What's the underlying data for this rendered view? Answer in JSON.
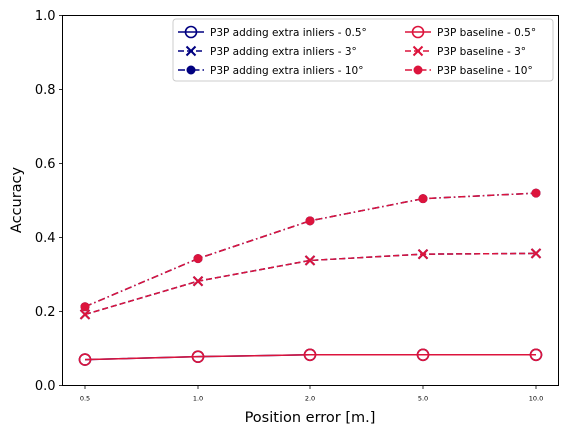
{
  "chart_data": {
    "type": "line",
    "title": "",
    "xlabel": "Position error [m.]",
    "ylabel": "Accuracy",
    "categories": [
      "0.5",
      "1.0",
      "2.0",
      "5.0",
      "10.0"
    ],
    "ylim": [
      0,
      1.0
    ],
    "yticks": [
      "0.0",
      "0.2",
      "0.4",
      "0.6",
      "0.8",
      "1.0"
    ],
    "grid": false,
    "legend_position": "top-right",
    "series": [
      {
        "name": "P3P adding extra inliers - 0.5°",
        "values": [
          0.07,
          0.078,
          0.083,
          0.083,
          0.083
        ],
        "color": "#000080",
        "marker": "open-circle",
        "line": "solid"
      },
      {
        "name": "P3P adding extra inliers - 3°",
        "values": [
          0.192,
          0.282,
          0.338,
          0.355,
          0.357
        ],
        "color": "#000080",
        "marker": "x",
        "line": "dashed"
      },
      {
        "name": "P3P adding extra inliers - 10°",
        "values": [
          0.213,
          0.343,
          0.445,
          0.505,
          0.52
        ],
        "color": "#000080",
        "marker": "filled-circle",
        "line": "dashdot"
      },
      {
        "name": "P3P baseline - 0.5°",
        "values": [
          0.07,
          0.078,
          0.083,
          0.083,
          0.083
        ],
        "color": "#dc143c",
        "marker": "open-circle",
        "line": "solid"
      },
      {
        "name": "P3P baseline - 3°",
        "values": [
          0.192,
          0.282,
          0.338,
          0.355,
          0.357
        ],
        "color": "#dc143c",
        "marker": "x",
        "line": "dashed"
      },
      {
        "name": "P3P baseline - 10°",
        "values": [
          0.213,
          0.343,
          0.445,
          0.505,
          0.52
        ],
        "color": "#dc143c",
        "marker": "filled-circle",
        "line": "dashdot"
      }
    ]
  }
}
